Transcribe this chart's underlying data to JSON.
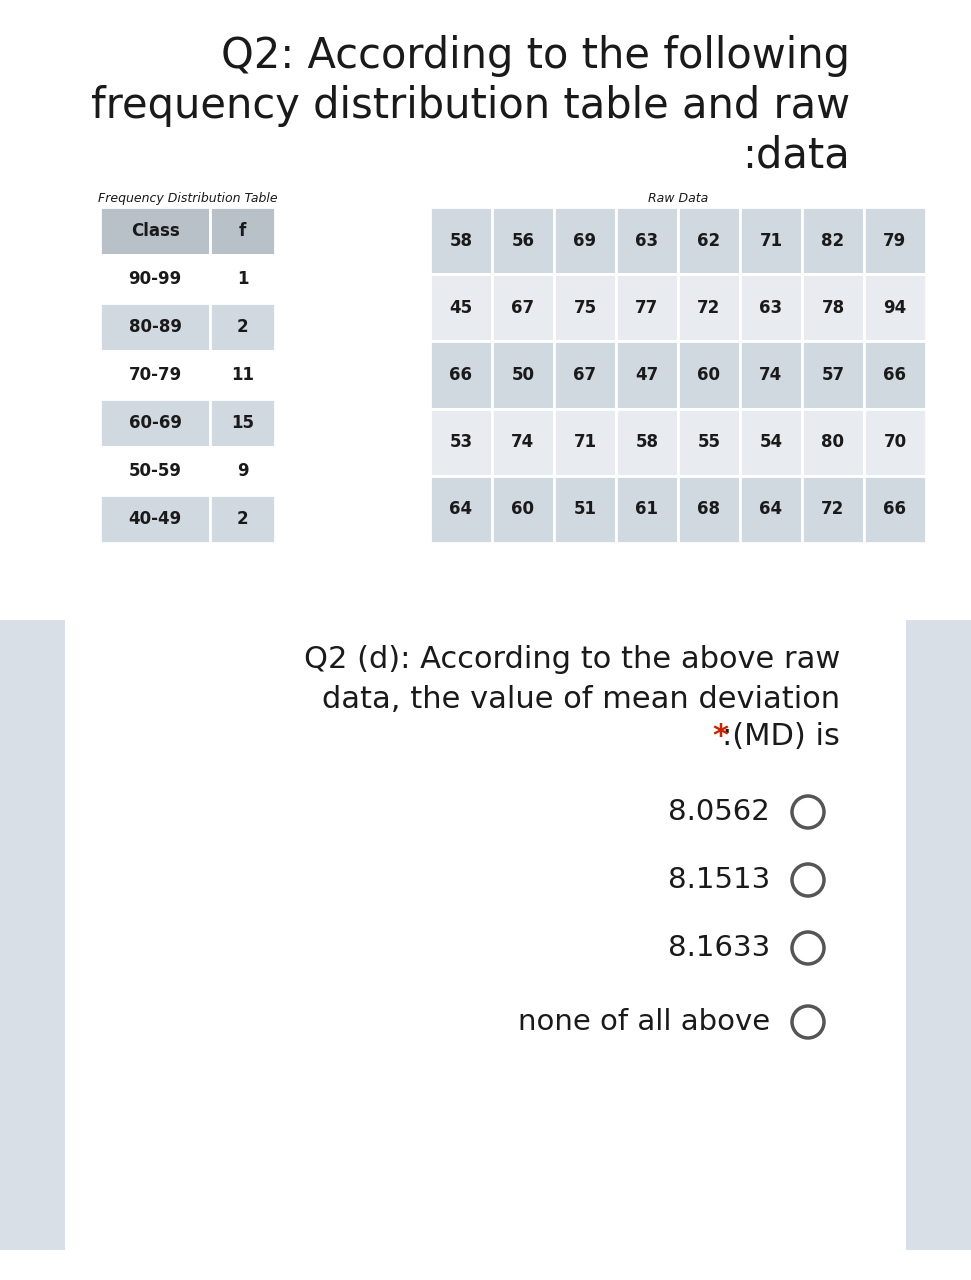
{
  "title_line1": "Q2: According to the following",
  "title_line2": "frequency distribution table and raw",
  "title_line3": ":data",
  "freq_table_title": "Frequency Distribution Table",
  "raw_data_title": "Raw Data",
  "freq_headers": [
    "Class",
    "f"
  ],
  "freq_rows": [
    [
      "90-99",
      "1"
    ],
    [
      "80-89",
      "2"
    ],
    [
      "70-79",
      "11"
    ],
    [
      "60-69",
      "15"
    ],
    [
      "50-59",
      "9"
    ],
    [
      "40-49",
      "2"
    ]
  ],
  "raw_data_rows": [
    [
      58,
      56,
      69,
      63,
      62,
      71,
      82,
      79
    ],
    [
      45,
      67,
      75,
      77,
      72,
      63,
      78,
      94
    ],
    [
      66,
      50,
      67,
      47,
      60,
      74,
      57,
      66
    ],
    [
      53,
      74,
      71,
      58,
      55,
      54,
      80,
      70
    ],
    [
      64,
      60,
      51,
      61,
      68,
      64,
      72,
      66
    ]
  ],
  "q2d_line1": "Q2 (d): According to the above raw",
  "q2d_line2": "data, the value of mean deviation",
  "q2d_line3_black": ":(MD) is",
  "q2d_line3_red": "*",
  "options": [
    "8.0562",
    "8.1513",
    "8.1633",
    "none of all above"
  ],
  "bg_color": "#ffffff",
  "panel_bg_color": "#e4e9ee",
  "table_header_bg": "#b8c0c8",
  "table_row_light": "#ffffff",
  "table_row_dark": "#d0d8e0",
  "raw_data_light": "#e8ecf0",
  "raw_data_dark": "#d0d8e0",
  "text_color": "#1a1a1a",
  "circle_color": "#555555",
  "red_color": "#cc2200",
  "side_panel_color": "#d8dfe6"
}
